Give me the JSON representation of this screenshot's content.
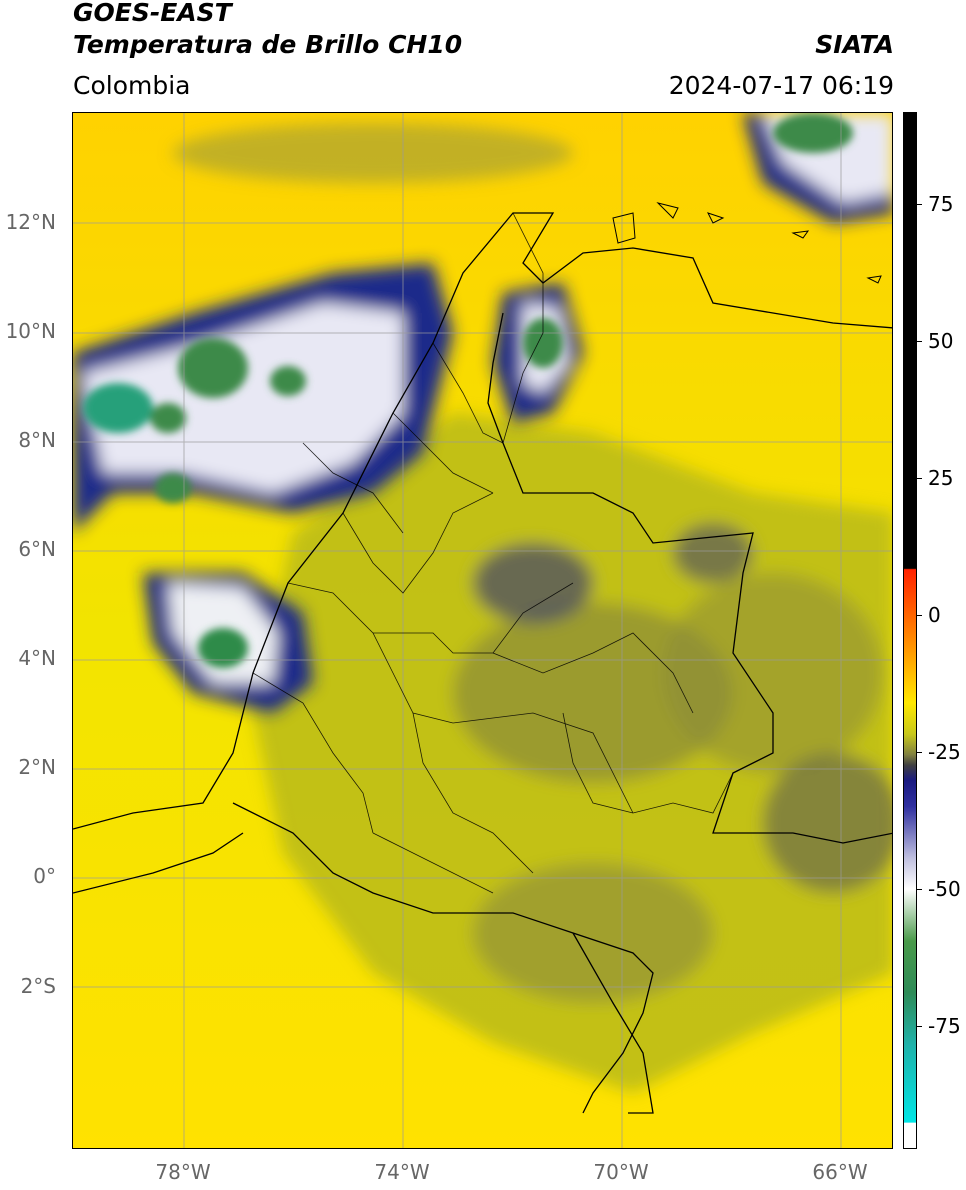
{
  "header": {
    "title_line1": "GOES-EAST",
    "title_line2": "Temperatura de Brillo CH10",
    "region": "Colombia",
    "brand": "SIATA",
    "datetime": "2024-07-17 06:19"
  },
  "axes": {
    "lat_labels": [
      "12°N",
      "10°N",
      "8°N",
      "6°N",
      "4°N",
      "2°N",
      "0°",
      "2°S"
    ],
    "lon_labels": [
      "78°W",
      "74°W",
      "70°W",
      "66°W"
    ]
  },
  "colorbar": {
    "tick_labels": [
      "75",
      "50",
      "25",
      "0",
      "-25",
      "-50",
      "-75"
    ]
  },
  "colors": {
    "warm": "#ffe400",
    "olive": "#a8a820",
    "navy": "#1a237e",
    "white": "#f2f2f2",
    "green": "#2e8b57",
    "teal": "#20b2aa"
  }
}
